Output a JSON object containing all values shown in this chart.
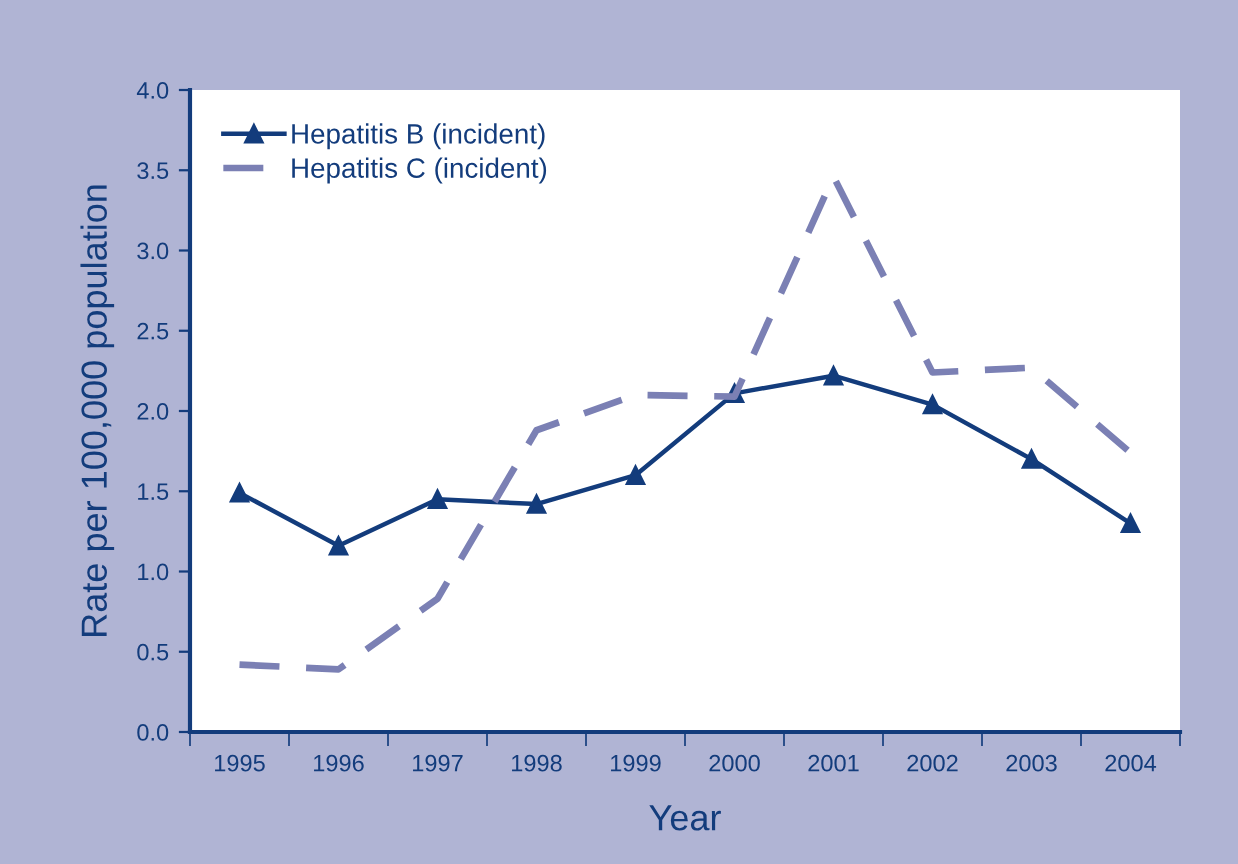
{
  "chart_data": {
    "type": "line",
    "xlabel": "Year",
    "ylabel": "Rate per 100,000 population",
    "categories": [
      "1995",
      "1996",
      "1997",
      "1998",
      "1999",
      "2000",
      "2001",
      "2002",
      "2003",
      "2004"
    ],
    "series": [
      {
        "name": "Hepatitis B (incident)",
        "color": "#133c7c",
        "marker": "triangle",
        "line_style": "solid",
        "values": [
          1.49,
          1.16,
          1.45,
          1.42,
          1.6,
          2.11,
          2.22,
          2.04,
          1.7,
          1.3
        ]
      },
      {
        "name": "Hepatitis C (incident)",
        "color": "#7b80b4",
        "marker": "none",
        "line_style": "dashed",
        "values": [
          0.42,
          0.39,
          0.83,
          1.88,
          2.1,
          2.09,
          3.46,
          2.24,
          2.27,
          1.74
        ]
      }
    ],
    "ylim": [
      0,
      4
    ],
    "yticks": [
      {
        "value": 0,
        "label": "0.0"
      },
      {
        "value": 0.5,
        "label": "0.5"
      },
      {
        "value": 1,
        "label": "1.0"
      },
      {
        "value": 1.5,
        "label": "1.5"
      },
      {
        "value": 2,
        "label": "2.0"
      },
      {
        "value": 2.5,
        "label": "2.5"
      },
      {
        "value": 3,
        "label": "3.0"
      },
      {
        "value": 3.5,
        "label": "3.5"
      },
      {
        "value": 4,
        "label": "4.0"
      }
    ],
    "grid": false,
    "legend": "top left"
  }
}
